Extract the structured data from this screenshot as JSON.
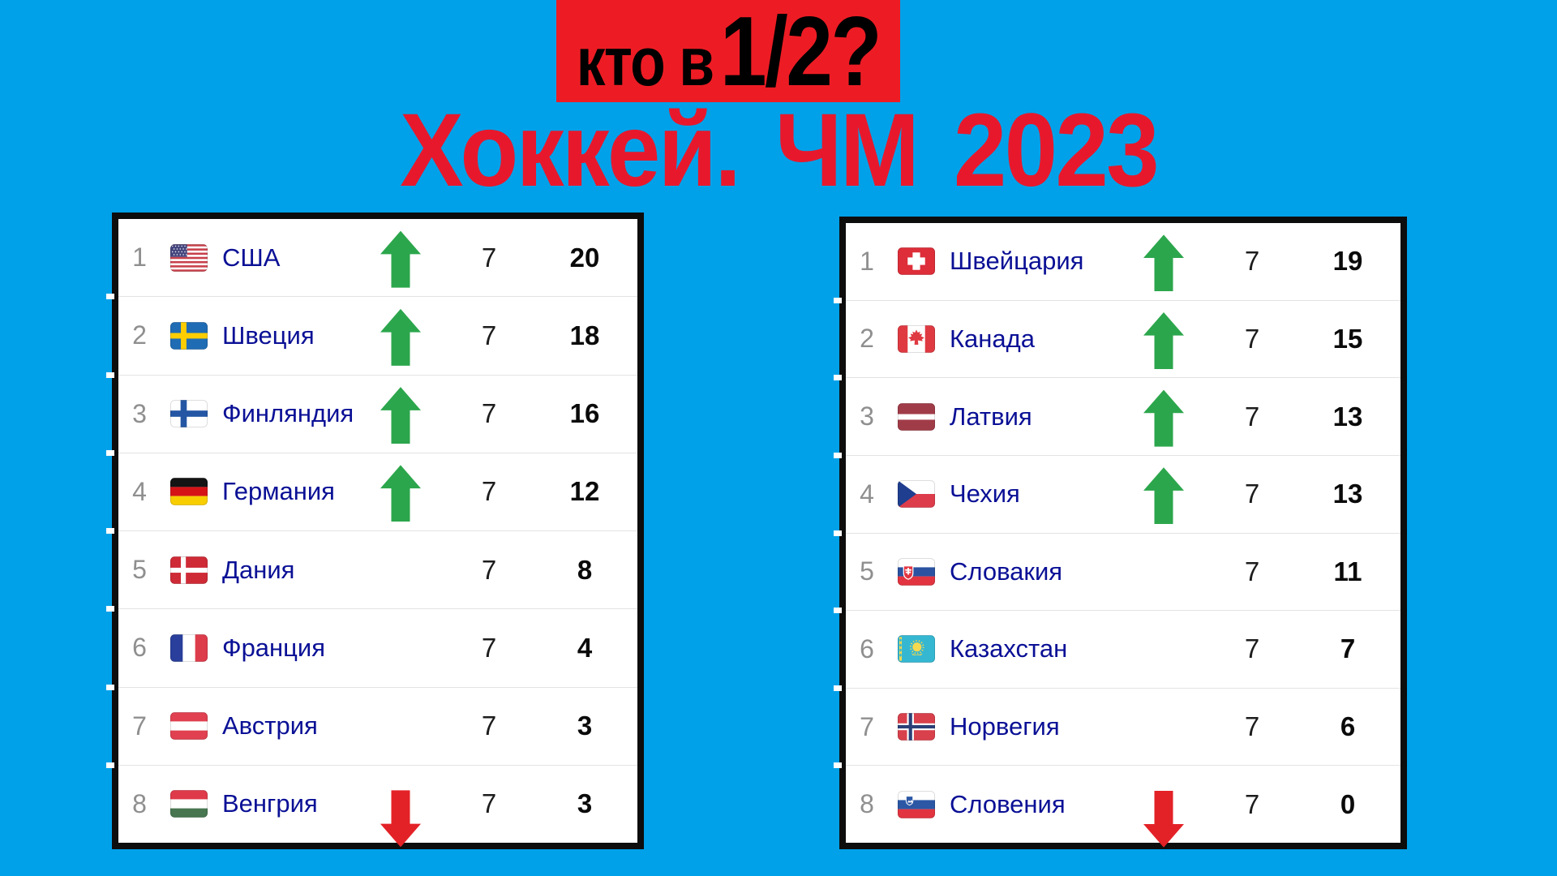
{
  "header": {
    "badge_prefix": "кто в",
    "badge_big": "1/2?",
    "title": "Хоккей. ЧМ 2023"
  },
  "colors": {
    "background": "#00a1e9",
    "badge_bg": "#ed1c24",
    "badge_text": "#000000",
    "title": "#e8182c",
    "table_bg": "#ffffff",
    "table_border": "#0d0d0d",
    "row_separator": "#e3e3e3",
    "country_text": "#0a1095",
    "position_text": "#8f8f8f",
    "points_text": "#0a0a0a",
    "trend_up": "#2ca64c",
    "trend_down": "#e32227"
  },
  "icons": {
    "trend_up": "up-arrow",
    "trend_down": "down-arrow"
  },
  "chart_data": [
    {
      "type": "table",
      "name": "left-standings",
      "columns": [
        "position",
        "country",
        "trend",
        "games_played",
        "points"
      ],
      "rows": [
        {
          "pos": "1",
          "country": "США",
          "flag": "us",
          "trend": "up",
          "played": "7",
          "points": "20"
        },
        {
          "pos": "2",
          "country": "Швеция",
          "flag": "se",
          "trend": "up",
          "played": "7",
          "points": "18"
        },
        {
          "pos": "3",
          "country": "Финляндия",
          "flag": "fi",
          "trend": "up",
          "played": "7",
          "points": "16"
        },
        {
          "pos": "4",
          "country": "Германия",
          "flag": "de",
          "trend": "up",
          "played": "7",
          "points": "12"
        },
        {
          "pos": "5",
          "country": "Дания",
          "flag": "dk",
          "trend": null,
          "played": "7",
          "points": "8"
        },
        {
          "pos": "6",
          "country": "Франция",
          "flag": "fr",
          "trend": null,
          "played": "7",
          "points": "4"
        },
        {
          "pos": "7",
          "country": "Австрия",
          "flag": "at",
          "trend": null,
          "played": "7",
          "points": "3"
        },
        {
          "pos": "8",
          "country": "Венгрия",
          "flag": "hu",
          "trend": "down",
          "played": "7",
          "points": "3"
        }
      ]
    },
    {
      "type": "table",
      "name": "right-standings",
      "columns": [
        "position",
        "country",
        "trend",
        "games_played",
        "points"
      ],
      "rows": [
        {
          "pos": "1",
          "country": "Швейцария",
          "flag": "ch",
          "trend": "up",
          "played": "7",
          "points": "19"
        },
        {
          "pos": "2",
          "country": "Канада",
          "flag": "ca",
          "trend": "up",
          "played": "7",
          "points": "15"
        },
        {
          "pos": "3",
          "country": "Латвия",
          "flag": "lv",
          "trend": "up",
          "played": "7",
          "points": "13"
        },
        {
          "pos": "4",
          "country": "Чехия",
          "flag": "cz",
          "trend": "up",
          "played": "7",
          "points": "13"
        },
        {
          "pos": "5",
          "country": "Словакия",
          "flag": "sk",
          "trend": null,
          "played": "7",
          "points": "11"
        },
        {
          "pos": "6",
          "country": "Казахстан",
          "flag": "kz",
          "trend": null,
          "played": "7",
          "points": "7"
        },
        {
          "pos": "7",
          "country": "Норвегия",
          "flag": "no",
          "trend": null,
          "played": "7",
          "points": "6"
        },
        {
          "pos": "8",
          "country": "Словения",
          "flag": "si",
          "trend": "down",
          "played": "7",
          "points": "0"
        }
      ]
    }
  ]
}
